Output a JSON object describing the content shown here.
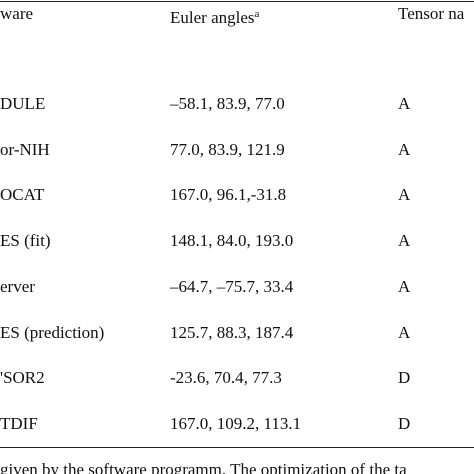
{
  "table": {
    "header": [
      "ware",
      "Euler angles",
      "Tensor na"
    ],
    "header_superscript": "a",
    "rows": [
      [
        "DULE",
        "–58.1, 83.9, 77.0",
        "A"
      ],
      [
        "or-NIH",
        "77.0, 83.9, 121.9",
        "A"
      ],
      [
        "OCAT",
        "167.0, 96.1,-31.8",
        "A"
      ],
      [
        "ES (fit)",
        "148.1, 84.0, 193.0",
        "A"
      ],
      [
        "erver",
        "–64.7, –75.7, 33.4",
        "A"
      ],
      [
        "ES (prediction)",
        "125.7, 88.3, 187.4",
        "A"
      ],
      [
        "'SOR2",
        "-23.6, 70.4, 77.3",
        "D"
      ],
      [
        "TDIF",
        "167.0, 109.2, 113.1",
        "D"
      ]
    ]
  },
  "footnote": "given by the software programm. The optimization of the ta"
}
